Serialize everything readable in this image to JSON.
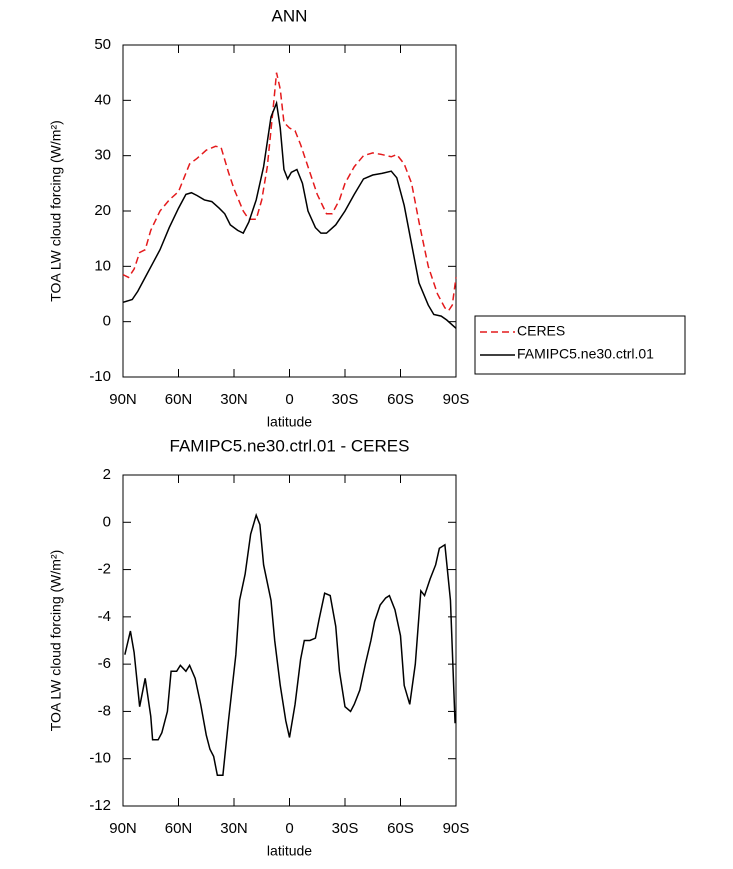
{
  "chart_data": [
    {
      "type": "line",
      "title": "ANN",
      "xlabel": "latitude",
      "ylabel": "TOA LW cloud forcing (W/m²)",
      "xlim": [
        90,
        -90
      ],
      "xticks": [
        {
          "value": 90,
          "label": "90N"
        },
        {
          "value": 60,
          "label": "60N"
        },
        {
          "value": 30,
          "label": "30N"
        },
        0,
        {
          "value": -30,
          "label": "30S"
        },
        {
          "value": -60,
          "label": "60S"
        },
        {
          "value": -90,
          "label": "90S"
        }
      ],
      "ylim": [
        -10,
        50
      ],
      "yticks": [
        -10,
        0,
        10,
        20,
        30,
        40,
        50
      ],
      "legend": "right",
      "series": [
        {
          "name": "CERES",
          "color": "#e41a1c",
          "dash": true,
          "x": [
            90,
            87,
            84,
            81,
            78,
            75,
            70,
            65,
            60,
            57,
            54,
            50,
            45,
            40,
            37,
            33,
            30,
            25,
            22,
            18,
            15,
            12,
            9,
            7,
            5,
            3,
            0,
            -3,
            -6,
            -10,
            -15,
            -20,
            -23,
            -27,
            -30,
            -35,
            -40,
            -45,
            -50,
            -55,
            -58,
            -62,
            -66,
            -70,
            -75,
            -80,
            -84,
            -86,
            -88,
            -90
          ],
          "values": [
            8.5,
            8,
            9.5,
            12.5,
            13,
            16.5,
            20,
            22,
            23.5,
            26,
            28.5,
            29.5,
            31,
            31.7,
            31.5,
            27,
            24,
            20,
            18.5,
            18.5,
            22,
            28,
            38,
            45,
            42,
            36,
            35,
            34.5,
            32,
            28,
            23,
            19.5,
            19.5,
            22,
            25,
            28,
            30,
            30.5,
            30.2,
            29.8,
            30.2,
            28.5,
            25,
            18,
            10,
            5,
            2.5,
            2,
            3,
            8
          ]
        },
        {
          "name": "FAMIPC5.ne30.ctrl.01",
          "color": "#000000",
          "dash": false,
          "x": [
            90,
            85,
            82,
            78,
            74,
            70,
            65,
            60,
            56,
            53,
            50,
            46,
            42,
            38,
            35,
            32,
            28,
            25,
            22,
            18,
            14,
            10,
            7,
            5,
            3,
            1,
            -1,
            -4,
            -7,
            -10,
            -14,
            -17,
            -20,
            -25,
            -30,
            -35,
            -40,
            -45,
            -50,
            -55,
            -58,
            -62,
            -66,
            -70,
            -75,
            -78,
            -82,
            -85,
            -90
          ],
          "values": [
            3.5,
            4,
            5.5,
            8,
            10.5,
            13,
            17,
            20.5,
            23,
            23.3,
            22.8,
            22,
            21.7,
            20.5,
            19.5,
            17.5,
            16.5,
            16,
            18,
            22,
            28,
            37,
            39.5,
            35,
            27.5,
            25.8,
            27,
            27.5,
            25,
            20,
            17,
            16,
            16,
            17.5,
            20,
            23,
            25.8,
            26.5,
            26.8,
            27.2,
            26,
            21,
            14,
            7,
            3,
            1.3,
            1,
            0.3,
            -1.2
          ]
        }
      ]
    },
    {
      "type": "line",
      "title": "FAMIPC5.ne30.ctrl.01 - CERES",
      "xlabel": "latitude",
      "ylabel": "TOA LW cloud forcing (W/m²)",
      "xlim": [
        90,
        -90
      ],
      "xticks": [
        {
          "value": 90,
          "label": "90N"
        },
        {
          "value": 60,
          "label": "60N"
        },
        {
          "value": 30,
          "label": "30N"
        },
        0,
        {
          "value": -30,
          "label": "30S"
        },
        {
          "value": -60,
          "label": "60S"
        },
        {
          "value": -90,
          "label": "90S"
        }
      ],
      "ylim": [
        -12,
        2
      ],
      "yticks": [
        -12,
        -10,
        -8,
        -6,
        -4,
        -2,
        0,
        2
      ],
      "series": [
        {
          "color": "#000000",
          "dash": false,
          "x": [
            89,
            86,
            84,
            81,
            78,
            75,
            74,
            71,
            69,
            66,
            64,
            61,
            59,
            56,
            54,
            51,
            48,
            45,
            43,
            41,
            39,
            36,
            33,
            29,
            27,
            24,
            21,
            18,
            16,
            14,
            10,
            8,
            5,
            2,
            0,
            -3,
            -6,
            -8,
            -11,
            -14,
            -16,
            -19,
            -22,
            -25,
            -27,
            -30,
            -33,
            -35,
            -38,
            -41,
            -44,
            -46,
            -49,
            -52,
            -54,
            -57,
            -60,
            -62,
            -65,
            -68,
            -71,
            -73,
            -76,
            -79,
            -81,
            -84,
            -87,
            -89.5
          ],
          "values": [
            -5.6,
            -4.6,
            -5.5,
            -7.8,
            -6.6,
            -8.2,
            -9.2,
            -9.2,
            -8.9,
            -8,
            -6.3,
            -6.3,
            -6.05,
            -6.3,
            -6.05,
            -6.6,
            -7.7,
            -9,
            -9.6,
            -9.9,
            -10.7,
            -10.7,
            -8.4,
            -5.6,
            -3.3,
            -2.2,
            -0.5,
            0.3,
            -0.1,
            -1.8,
            -3.3,
            -5,
            -6.9,
            -8.4,
            -9.1,
            -7.7,
            -5.8,
            -5,
            -5,
            -4.9,
            -4.1,
            -3,
            -3.1,
            -4.4,
            -6.3,
            -7.8,
            -8,
            -7.7,
            -7.1,
            -6,
            -5,
            -4.2,
            -3.5,
            -3.2,
            -3.1,
            -3.7,
            -4.8,
            -6.9,
            -7.7,
            -6,
            -2.9,
            -3.1,
            -2.4,
            -1.8,
            -1.1,
            -0.95,
            -3.3,
            -8.5
          ]
        }
      ]
    }
  ]
}
